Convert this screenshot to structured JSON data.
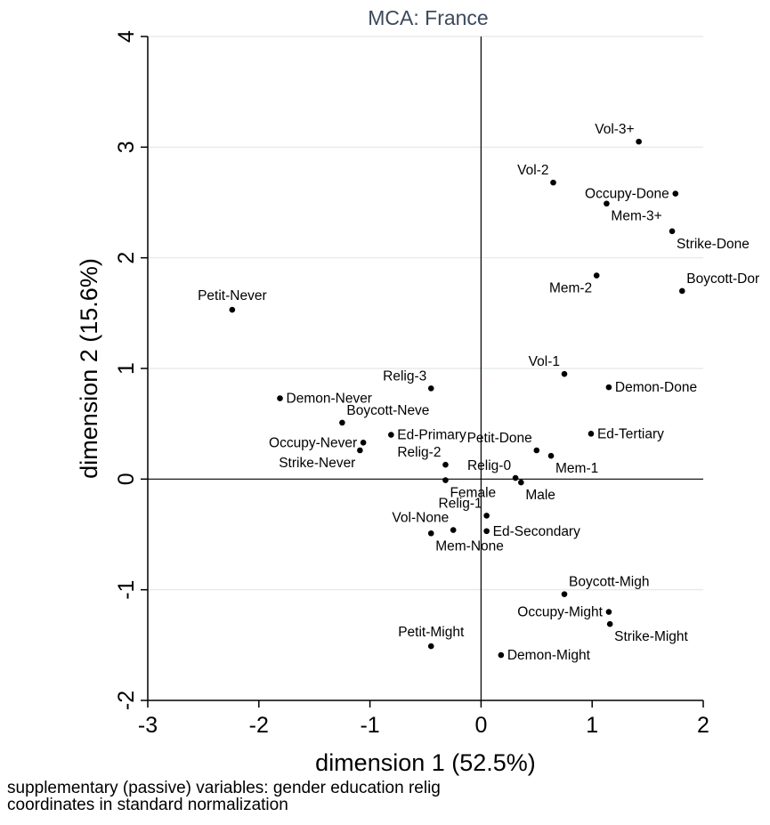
{
  "chart_data": {
    "type": "scatter",
    "title": "MCA:  France",
    "xlabel": "dimension 1 (52.5%)",
    "ylabel": "dimension 2 (15.6%)",
    "xlim": [
      -3,
      2
    ],
    "ylim": [
      -2,
      4
    ],
    "x_ticks": [
      "-3",
      "-2",
      "-1",
      "0",
      "1",
      "2"
    ],
    "y_ticks": [
      "-2",
      "-1",
      "0",
      "1",
      "2",
      "3",
      "4"
    ],
    "grid": "horizontal",
    "reference_lines": "x=0 and y=0",
    "points": [
      {
        "label": "Vol-3+",
        "x": 1.42,
        "y": 3.05,
        "pos": "ul"
      },
      {
        "label": "Vol-2",
        "x": 0.65,
        "y": 2.68,
        "pos": "ul"
      },
      {
        "label": "Occupy-Done",
        "x": 1.75,
        "y": 2.58,
        "pos": "l"
      },
      {
        "label": "Mem-3+",
        "x": 1.13,
        "y": 2.49,
        "pos": "br"
      },
      {
        "label": "Strike-Done",
        "x": 1.72,
        "y": 2.24,
        "pos": "br"
      },
      {
        "label": "Mem-2",
        "x": 1.04,
        "y": 1.84,
        "pos": "bl"
      },
      {
        "label": "Boycott-Dor",
        "x": 1.81,
        "y": 1.7,
        "pos": "ur"
      },
      {
        "label": "Petit-Never",
        "x": -2.24,
        "y": 1.53,
        "pos": "u"
      },
      {
        "label": "Vol-1",
        "x": 0.75,
        "y": 0.95,
        "pos": "ul"
      },
      {
        "label": "Demon-Done",
        "x": 1.15,
        "y": 0.83,
        "pos": "r"
      },
      {
        "label": "Relig-3",
        "x": -0.45,
        "y": 0.82,
        "pos": "ul"
      },
      {
        "label": "Demon-Never",
        "x": -1.81,
        "y": 0.73,
        "pos": "r"
      },
      {
        "label": "Boycott-Neve",
        "x": -1.25,
        "y": 0.51,
        "pos": "ur"
      },
      {
        "label": "Ed-Primary",
        "x": -0.81,
        "y": 0.4,
        "pos": "r"
      },
      {
        "label": "Ed-Tertiary",
        "x": 0.99,
        "y": 0.41,
        "pos": "r"
      },
      {
        "label": "Occupy-Never",
        "x": -1.06,
        "y": 0.33,
        "pos": "l"
      },
      {
        "label": "Petit-Done",
        "x": 0.5,
        "y": 0.26,
        "pos": "ul"
      },
      {
        "label": "Strike-Never",
        "x": -1.09,
        "y": 0.26,
        "pos": "bl"
      },
      {
        "label": "Mem-1",
        "x": 0.63,
        "y": 0.21,
        "pos": "br"
      },
      {
        "label": "Relig-2",
        "x": -0.32,
        "y": 0.13,
        "pos": "ul"
      },
      {
        "label": "Relig-0",
        "x": 0.31,
        "y": 0.01,
        "pos": "ul"
      },
      {
        "label": "Female",
        "x": -0.32,
        "y": -0.01,
        "pos": "br"
      },
      {
        "label": "Male",
        "x": 0.36,
        "y": -0.03,
        "pos": "br"
      },
      {
        "label": "Relig-1",
        "x": 0.05,
        "y": -0.33,
        "pos": "ul"
      },
      {
        "label": "Ed-Secondary",
        "x": 0.05,
        "y": -0.47,
        "pos": "r"
      },
      {
        "label": "Vol-None",
        "x": -0.25,
        "y": -0.46,
        "pos": "ul"
      },
      {
        "label": "Mem-None",
        "x": -0.45,
        "y": -0.49,
        "pos": "br"
      },
      {
        "label": "Boycott-Migh",
        "x": 0.75,
        "y": -1.04,
        "pos": "ur"
      },
      {
        "label": "Occupy-Might",
        "x": 1.15,
        "y": -1.2,
        "pos": "l"
      },
      {
        "label": "Strike-Might",
        "x": 1.16,
        "y": -1.31,
        "pos": "br"
      },
      {
        "label": "Petit-Might",
        "x": -0.45,
        "y": -1.51,
        "pos": "u"
      },
      {
        "label": "Demon-Might",
        "x": 0.18,
        "y": -1.59,
        "pos": "r"
      }
    ]
  },
  "notes": [
    "supplementary (passive) variables: gender education relig",
    "coordinates in standard normalization"
  ]
}
